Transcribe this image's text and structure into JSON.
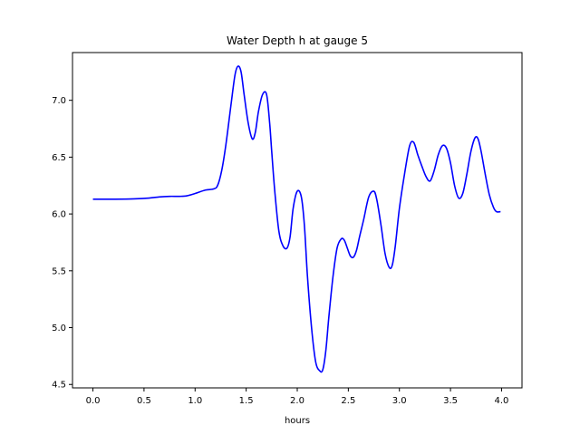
{
  "chart_data": {
    "type": "line",
    "title": "Water Depth h at gauge 5",
    "xlabel": "hours",
    "ylabel": "",
    "xlim": [
      -0.2,
      4.2
    ],
    "ylim": [
      4.47,
      7.42
    ],
    "xticks": [
      0.0,
      0.5,
      1.0,
      1.5,
      2.0,
      2.5,
      3.0,
      3.5,
      4.0
    ],
    "xtick_labels": [
      "0.0",
      "0.5",
      "1.0",
      "1.5",
      "2.0",
      "2.5",
      "3.0",
      "3.5",
      "4.0"
    ],
    "yticks": [
      4.5,
      5.0,
      5.5,
      6.0,
      6.5,
      7.0
    ],
    "ytick_labels": [
      "4.5",
      "5.0",
      "5.5",
      "6.0",
      "6.5",
      "7.0"
    ],
    "grid": false,
    "legend": "none",
    "series": [
      {
        "color": "#0000ff",
        "x": [
          0.0,
          0.2,
          0.4,
          0.55,
          0.65,
          0.75,
          0.85,
          0.92,
          1.0,
          1.1,
          1.18,
          1.22,
          1.26,
          1.3,
          1.35,
          1.39,
          1.42,
          1.45,
          1.48,
          1.52,
          1.56,
          1.59,
          1.62,
          1.66,
          1.7,
          1.73,
          1.75,
          1.78,
          1.82,
          1.86,
          1.9,
          1.93,
          1.96,
          2.0,
          2.04,
          2.07,
          2.1,
          2.14,
          2.18,
          2.22,
          2.25,
          2.28,
          2.31,
          2.35,
          2.39,
          2.43,
          2.46,
          2.49,
          2.52,
          2.55,
          2.58,
          2.61,
          2.65,
          2.7,
          2.75,
          2.78,
          2.82,
          2.86,
          2.9,
          2.93,
          2.96,
          3.0,
          3.05,
          3.1,
          3.14,
          3.18,
          3.22,
          3.26,
          3.3,
          3.34,
          3.38,
          3.42,
          3.46,
          3.5,
          3.54,
          3.58,
          3.62,
          3.66,
          3.7,
          3.74,
          3.77,
          3.8,
          3.84,
          3.88,
          3.92,
          3.95,
          3.99
        ],
        "y": [
          6.13,
          6.13,
          6.133,
          6.14,
          6.15,
          6.155,
          6.155,
          6.16,
          6.18,
          6.21,
          6.22,
          6.25,
          6.38,
          6.6,
          6.95,
          7.22,
          7.3,
          7.25,
          7.05,
          6.8,
          6.66,
          6.72,
          6.9,
          7.05,
          7.05,
          6.8,
          6.55,
          6.2,
          5.85,
          5.72,
          5.7,
          5.8,
          6.05,
          6.2,
          6.15,
          5.9,
          5.45,
          5.0,
          4.7,
          4.62,
          4.63,
          4.8,
          5.1,
          5.45,
          5.7,
          5.78,
          5.77,
          5.7,
          5.63,
          5.62,
          5.68,
          5.8,
          5.95,
          6.15,
          6.2,
          6.12,
          5.9,
          5.65,
          5.53,
          5.55,
          5.72,
          6.05,
          6.35,
          6.6,
          6.63,
          6.52,
          6.42,
          6.33,
          6.29,
          6.38,
          6.52,
          6.6,
          6.58,
          6.45,
          6.25,
          6.14,
          6.18,
          6.35,
          6.55,
          6.67,
          6.66,
          6.55,
          6.35,
          6.17,
          6.06,
          6.02,
          6.02
        ]
      }
    ]
  }
}
